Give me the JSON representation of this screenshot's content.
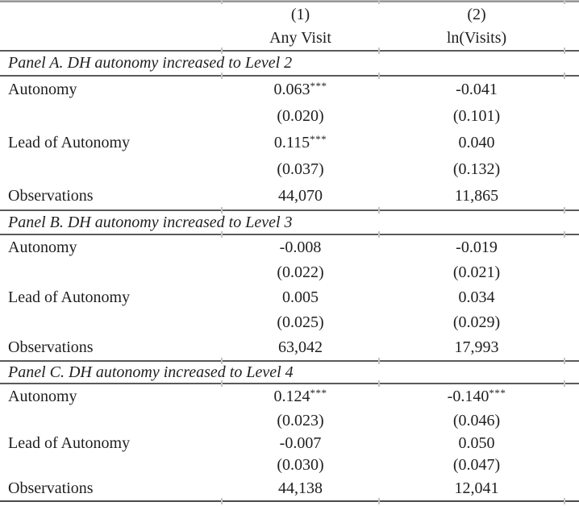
{
  "table": {
    "header": {
      "col1_num": "(1)",
      "col2_num": "(2)",
      "col1_name": "Any Visit",
      "col2_name": "ln(Visits)"
    },
    "panels": [
      {
        "title": "Panel A. DH autonomy increased to Level 2",
        "coef1": {
          "label": "Autonomy",
          "v1": "0.063",
          "s1": "***",
          "v2": "-0.041",
          "s2": ""
        },
        "se1": {
          "v1": "(0.020)",
          "v2": "(0.101)"
        },
        "coef2": {
          "label": "Lead of Autonomy",
          "v1": "0.115",
          "s1": "***",
          "v2": "0.040",
          "s2": ""
        },
        "se2": {
          "v1": "(0.037)",
          "v2": "(0.132)"
        },
        "obs": {
          "label": "Observations",
          "v1": "44,070",
          "v2": "11,865"
        }
      },
      {
        "title": "Panel B. DH autonomy increased to Level 3",
        "coef1": {
          "label": "Autonomy",
          "v1": "-0.008",
          "s1": "",
          "v2": "-0.019",
          "s2": ""
        },
        "se1": {
          "v1": "(0.022)",
          "v2": "(0.021)"
        },
        "coef2": {
          "label": "Lead of Autonomy",
          "v1": "0.005",
          "s1": "",
          "v2": "0.034",
          "s2": ""
        },
        "se2": {
          "v1": "(0.025)",
          "v2": "(0.029)"
        },
        "obs": {
          "label": "Observations",
          "v1": "63,042",
          "v2": "17,993"
        }
      },
      {
        "title": "Panel C. DH autonomy increased to Level 4",
        "coef1": {
          "label": "Autonomy",
          "v1": "0.124",
          "s1": "***",
          "v2": "-0.140",
          "s2": "***"
        },
        "se1": {
          "v1": "(0.023)",
          "v2": "(0.046)"
        },
        "coef2": {
          "label": "Lead of Autonomy",
          "v1": "-0.007",
          "s1": "",
          "v2": "0.050",
          "s2": ""
        },
        "se2": {
          "v1": "(0.030)",
          "v2": "(0.047)"
        },
        "obs": {
          "label": "Observations",
          "v1": "44,138",
          "v2": "12,041"
        }
      }
    ],
    "colors": {
      "rule": "#5a5a5a",
      "top_rule": "#9a9a9a",
      "tick": "#c4c4c4",
      "text": "#1f1f1f"
    }
  }
}
